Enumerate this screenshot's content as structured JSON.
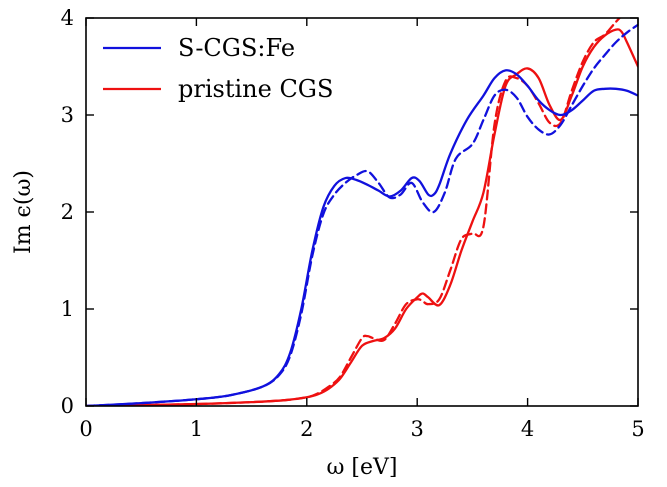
{
  "chart_data": {
    "type": "line",
    "title": "",
    "xlabel": "ω [eV]",
    "ylabel": "Im ϵ(ω)",
    "xlim": [
      0,
      5
    ],
    "ylim": [
      0,
      4
    ],
    "xticks": [
      "0",
      "1",
      "2",
      "3",
      "4",
      "5"
    ],
    "yticks": [
      "0",
      "1",
      "2",
      "3",
      "4"
    ],
    "grid": false,
    "legend_position": "top-left",
    "legend": [
      {
        "label": "S-CGS:Fe",
        "color": "#1111dd"
      },
      {
        "label": "pristine CGS",
        "color": "#ee1111"
      }
    ],
    "series": [
      {
        "name": "S-CGS:Fe",
        "style": "solid",
        "color": "#1111dd",
        "x": [
          0.0,
          0.5,
          1.0,
          1.3,
          1.6,
          1.75,
          1.85,
          1.95,
          2.05,
          2.15,
          2.25,
          2.35,
          2.45,
          2.55,
          2.65,
          2.75,
          2.85,
          2.95,
          3.02,
          3.1,
          3.15,
          3.2,
          3.3,
          3.45,
          3.6,
          3.7,
          3.8,
          3.9,
          4.0,
          4.1,
          4.2,
          4.3,
          4.4,
          4.5,
          4.6,
          4.7,
          4.8,
          4.9,
          5.0
        ],
        "y": [
          0.0,
          0.03,
          0.07,
          0.11,
          0.2,
          0.33,
          0.55,
          1.0,
          1.6,
          2.05,
          2.27,
          2.35,
          2.33,
          2.28,
          2.22,
          2.16,
          2.22,
          2.35,
          2.32,
          2.18,
          2.18,
          2.28,
          2.6,
          2.95,
          3.2,
          3.38,
          3.46,
          3.42,
          3.3,
          3.15,
          3.05,
          3.0,
          3.05,
          3.15,
          3.25,
          3.27,
          3.27,
          3.25,
          3.2
        ]
      },
      {
        "name": "S-CGS:Fe (dashed)",
        "style": "dashed",
        "color": "#1111dd",
        "x": [
          0.0,
          0.5,
          1.0,
          1.3,
          1.6,
          1.75,
          1.85,
          1.95,
          2.05,
          2.15,
          2.25,
          2.35,
          2.45,
          2.55,
          2.65,
          2.75,
          2.85,
          2.95,
          3.05,
          3.15,
          3.25,
          3.35,
          3.5,
          3.6,
          3.7,
          3.8,
          3.9,
          4.0,
          4.1,
          4.2,
          4.3,
          4.4,
          4.5,
          4.6,
          4.7,
          4.8,
          4.9,
          5.0
        ],
        "y": [
          0.0,
          0.03,
          0.07,
          0.11,
          0.2,
          0.32,
          0.52,
          0.95,
          1.55,
          1.98,
          2.18,
          2.3,
          2.38,
          2.42,
          2.3,
          2.15,
          2.18,
          2.3,
          2.1,
          2.0,
          2.2,
          2.55,
          2.7,
          2.95,
          3.2,
          3.26,
          3.18,
          2.98,
          2.85,
          2.8,
          2.9,
          3.1,
          3.3,
          3.48,
          3.62,
          3.75,
          3.85,
          3.93
        ]
      },
      {
        "name": "pristine CGS",
        "style": "solid",
        "color": "#ee1111",
        "x": [
          0.0,
          0.5,
          1.0,
          1.5,
          1.8,
          2.0,
          2.1,
          2.2,
          2.3,
          2.4,
          2.5,
          2.6,
          2.7,
          2.8,
          2.9,
          3.0,
          3.05,
          3.1,
          3.2,
          3.3,
          3.4,
          3.5,
          3.6,
          3.7,
          3.8,
          3.9,
          4.0,
          4.1,
          4.2,
          4.3,
          4.4,
          4.5,
          4.6,
          4.7,
          4.8,
          4.85,
          4.9,
          5.0
        ],
        "y": [
          0.0,
          0.01,
          0.02,
          0.04,
          0.06,
          0.09,
          0.12,
          0.18,
          0.28,
          0.45,
          0.62,
          0.67,
          0.7,
          0.8,
          1.0,
          1.12,
          1.16,
          1.12,
          1.04,
          1.25,
          1.6,
          1.9,
          2.2,
          2.8,
          3.3,
          3.42,
          3.48,
          3.38,
          3.1,
          2.95,
          3.2,
          3.5,
          3.7,
          3.82,
          3.88,
          3.86,
          3.75,
          3.5
        ]
      },
      {
        "name": "pristine CGS (dashed)",
        "style": "dashed",
        "color": "#ee1111",
        "x": [
          0.0,
          0.5,
          1.0,
          1.5,
          1.8,
          2.0,
          2.1,
          2.2,
          2.3,
          2.4,
          2.5,
          2.55,
          2.6,
          2.7,
          2.8,
          2.9,
          3.0,
          3.05,
          3.1,
          3.2,
          3.3,
          3.4,
          3.5,
          3.6,
          3.7,
          3.8,
          3.9,
          4.0,
          4.1,
          4.2,
          4.3,
          4.4,
          4.5,
          4.6,
          4.7,
          4.8,
          4.9,
          5.0
        ],
        "y": [
          0.0,
          0.01,
          0.02,
          0.04,
          0.06,
          0.09,
          0.13,
          0.2,
          0.3,
          0.5,
          0.7,
          0.72,
          0.7,
          0.68,
          0.85,
          1.05,
          1.1,
          1.08,
          1.05,
          1.1,
          1.4,
          1.72,
          1.78,
          1.85,
          2.9,
          3.35,
          3.38,
          3.3,
          3.12,
          2.92,
          2.92,
          3.25,
          3.55,
          3.75,
          3.83,
          3.96,
          4.08,
          4.2
        ]
      }
    ]
  }
}
